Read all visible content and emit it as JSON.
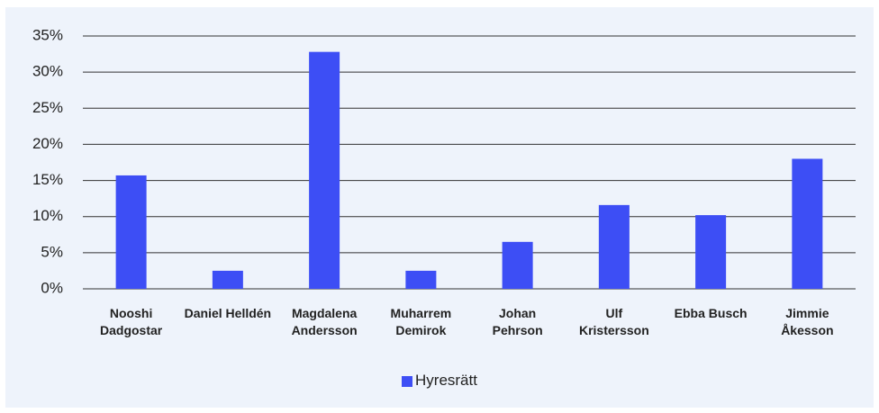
{
  "chart_data": {
    "type": "bar",
    "categories": [
      "Nooshi Dadgostar",
      "Daniel Helldén",
      "Magdalena Andersson",
      "Muharrem Demirok",
      "Johan Pehrson",
      "Ulf Kristersson",
      "Ebba Busch",
      "Jimmie Åkesson"
    ],
    "series": [
      {
        "name": "Hyresrätt",
        "color": "#3d4ef5",
        "values": [
          15.7,
          2.5,
          32.8,
          2.5,
          6.5,
          11.6,
          10.2,
          18.0
        ]
      }
    ],
    "ylim": [
      0,
      35
    ],
    "yticks": [
      {
        "value": 0,
        "label": "0%"
      },
      {
        "value": 5,
        "label": "5%"
      },
      {
        "value": 10,
        "label": "10%"
      },
      {
        "value": 15,
        "label": "15%"
      },
      {
        "value": 20,
        "label": "20%"
      },
      {
        "value": 25,
        "label": "25%"
      },
      {
        "value": 30,
        "label": "30%"
      },
      {
        "value": 35,
        "label": "35%"
      }
    ],
    "grid": true,
    "legend": "bottom"
  }
}
